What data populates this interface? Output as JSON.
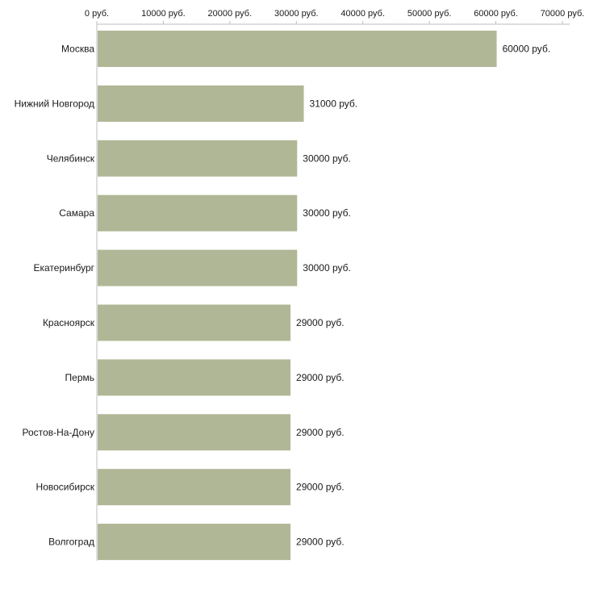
{
  "chart_data": {
    "type": "bar",
    "orientation": "horizontal",
    "title": "",
    "xlabel": "",
    "ylabel": "",
    "unit": "руб.",
    "categories": [
      "Москва",
      "Нижний Новгород",
      "Челябинск",
      "Самара",
      "Екатеринбург",
      "Красноярск",
      "Пермь",
      "Ростов-На-Дону",
      "Новосибирск",
      "Волгоград"
    ],
    "values": [
      60000,
      31000,
      30000,
      30000,
      30000,
      29000,
      29000,
      29000,
      29000,
      29000
    ],
    "value_labels": [
      "60000 руб.",
      "31000 руб.",
      "30000 руб.",
      "30000 руб.",
      "30000 руб.",
      "29000 руб.",
      "29000 руб.",
      "29000 руб.",
      "29000 руб.",
      "29000 руб."
    ],
    "x_ticks": [
      0,
      10000,
      20000,
      30000,
      40000,
      50000,
      60000,
      70000
    ],
    "x_tick_labels": [
      "0 руб.",
      "10000 руб.",
      "20000 руб.",
      "30000 руб.",
      "40000 руб.",
      "50000 руб.",
      "60000 руб.",
      "70000 руб."
    ],
    "xlim": [
      0,
      70000
    ],
    "grid": false,
    "legend": "none",
    "colors": {
      "bar": "#b0b796",
      "axis": "#bdbdbd",
      "text": "#1a1a1a",
      "background": "#ffffff"
    }
  }
}
